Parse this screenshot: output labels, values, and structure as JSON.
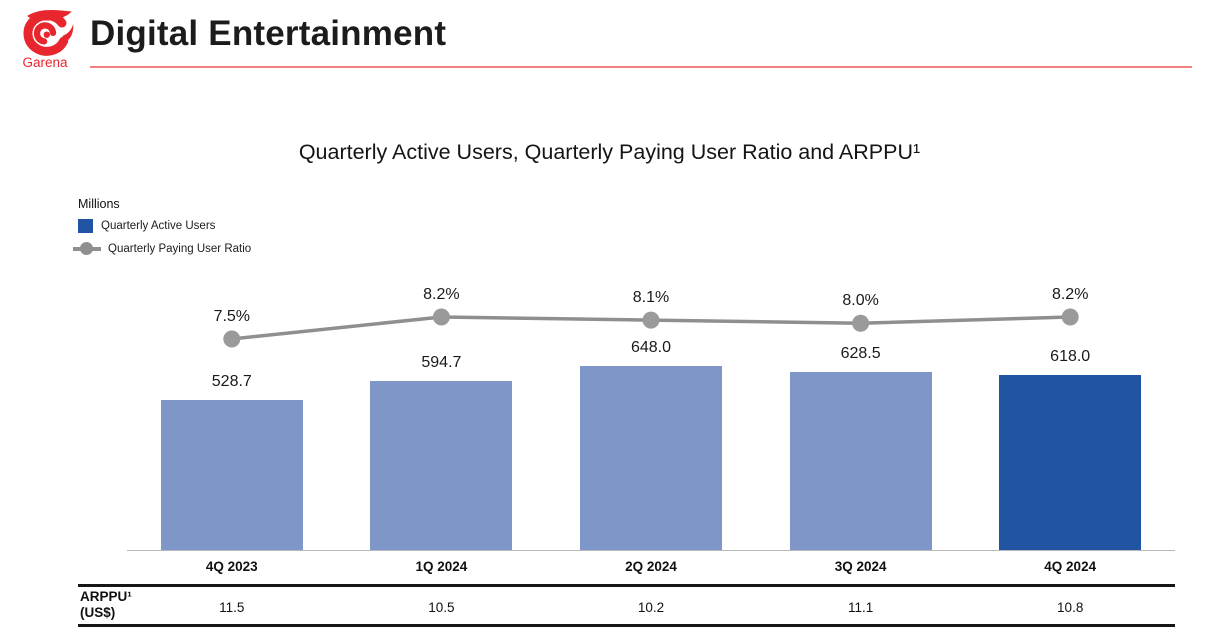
{
  "header": {
    "logo_text": "Garena",
    "title": "Digital Entertainment"
  },
  "chart": {
    "title": "Quarterly Active Users, Quarterly Paying User Ratio and ARPPU¹",
    "unit_label": "Millions",
    "legend": [
      {
        "label": "Quarterly Active Users"
      },
      {
        "label": "Quarterly Paying User Ratio"
      }
    ]
  },
  "chart_data": {
    "type": "bar+line",
    "title": "Quarterly Active Users, Quarterly Paying User Ratio and ARPPU¹",
    "categories": [
      "4Q 2023",
      "1Q 2024",
      "2Q 2024",
      "3Q 2024",
      "4Q 2024"
    ],
    "series": [
      {
        "name": "Quarterly Active Users",
        "type": "bar",
        "unit": "millions",
        "values": [
          528.7,
          594.7,
          648.0,
          628.5,
          618.0
        ],
        "labels": [
          "528.7",
          "594.7",
          "648.0",
          "628.5",
          "618.0"
        ]
      },
      {
        "name": "Quarterly Paying User Ratio",
        "type": "line",
        "unit": "percent",
        "values": [
          7.5,
          8.2,
          8.1,
          8.0,
          8.2
        ],
        "labels": [
          "7.5%",
          "8.2%",
          "8.1%",
          "8.0%",
          "8.2%"
        ]
      }
    ],
    "bar_colors": [
      "#7E96C8",
      "#7E96C8",
      "#7E96C8",
      "#7E96C8",
      "#2155A3"
    ],
    "line_color": "#8F8F8F",
    "dot_color": "#9A9A9A",
    "ylabel": "Millions",
    "legend_position": "top-left",
    "grid": false
  },
  "arppu_table": {
    "row_label": "ARPPU¹ (US$)",
    "row_label_line1": "ARPPU¹",
    "row_label_line2": "(US$)",
    "values": [
      "11.5",
      "10.5",
      "10.2",
      "11.1",
      "10.8"
    ]
  },
  "colors": {
    "bar_light": "#7E96C8",
    "bar_dark": "#2155A3",
    "line_gray": "#8F8F8F",
    "garena_red": "#E8262D",
    "rule_red": "#F1807E"
  }
}
